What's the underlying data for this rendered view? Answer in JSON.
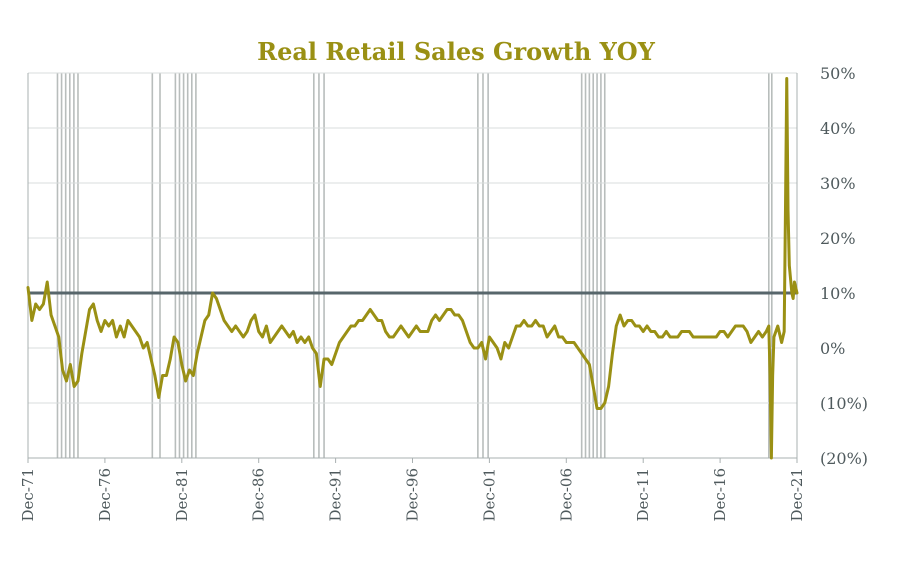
{
  "chart_data": {
    "type": "line",
    "title": "Real Retail Sales Growth YOY",
    "xlabel": "",
    "ylabel": "",
    "x_range": [
      "Dec-71",
      "Dec-21"
    ],
    "ylim": [
      -0.2,
      0.5
    ],
    "y_ticks": [
      {
        "value": 0.5,
        "label": "50%"
      },
      {
        "value": 0.4,
        "label": "40%"
      },
      {
        "value": 0.3,
        "label": "30%"
      },
      {
        "value": 0.2,
        "label": "20%"
      },
      {
        "value": 0.1,
        "label": "10%"
      },
      {
        "value": 0.0,
        "label": "0%"
      },
      {
        "value": -0.1,
        "label": "(10%)"
      },
      {
        "value": -0.2,
        "label": "(20%)"
      }
    ],
    "x_ticks": [
      {
        "value": "1971-12",
        "label": "Dec-71"
      },
      {
        "value": "1976-12",
        "label": "Dec-76"
      },
      {
        "value": "1981-12",
        "label": "Dec-81"
      },
      {
        "value": "1986-12",
        "label": "Dec-86"
      },
      {
        "value": "1991-12",
        "label": "Dec-91"
      },
      {
        "value": "1996-12",
        "label": "Dec-96"
      },
      {
        "value": "2001-12",
        "label": "Dec-01"
      },
      {
        "value": "2006-12",
        "label": "Dec-06"
      },
      {
        "value": "2011-12",
        "label": "Dec-11"
      },
      {
        "value": "2016-12",
        "label": "Dec-16"
      },
      {
        "value": "2021-12",
        "label": "Dec-21"
      }
    ],
    "grid": true,
    "reference_line": {
      "value": 0.1
    },
    "recessions": [
      {
        "start": "1973-11",
        "end": "1975-03"
      },
      {
        "start": "1980-01",
        "end": "1980-07"
      },
      {
        "start": "1981-07",
        "end": "1982-11"
      },
      {
        "start": "1990-07",
        "end": "1991-03"
      },
      {
        "start": "2001-03",
        "end": "2001-11"
      },
      {
        "start": "2007-12",
        "end": "2009-06"
      },
      {
        "start": "2020-02",
        "end": "2020-04"
      }
    ],
    "series": [
      {
        "color": "#9a9014",
        "points": [
          [
            "1971-12",
            0.11
          ],
          [
            "1972-03",
            0.05
          ],
          [
            "1972-06",
            0.08
          ],
          [
            "1972-09",
            0.07
          ],
          [
            "1972-12",
            0.08
          ],
          [
            "1973-03",
            0.12
          ],
          [
            "1973-06",
            0.06
          ],
          [
            "1973-09",
            0.04
          ],
          [
            "1973-12",
            0.02
          ],
          [
            "1974-03",
            -0.04
          ],
          [
            "1974-06",
            -0.06
          ],
          [
            "1974-09",
            -0.03
          ],
          [
            "1974-12",
            -0.07
          ],
          [
            "1975-03",
            -0.06
          ],
          [
            "1975-06",
            -0.01
          ],
          [
            "1975-09",
            0.03
          ],
          [
            "1975-12",
            0.07
          ],
          [
            "1976-03",
            0.08
          ],
          [
            "1976-06",
            0.05
          ],
          [
            "1976-09",
            0.03
          ],
          [
            "1976-12",
            0.05
          ],
          [
            "1977-03",
            0.04
          ],
          [
            "1977-06",
            0.05
          ],
          [
            "1977-09",
            0.02
          ],
          [
            "1977-12",
            0.04
          ],
          [
            "1978-03",
            0.02
          ],
          [
            "1978-06",
            0.05
          ],
          [
            "1978-09",
            0.04
          ],
          [
            "1978-12",
            0.03
          ],
          [
            "1979-03",
            0.02
          ],
          [
            "1979-06",
            0.0
          ],
          [
            "1979-09",
            0.01
          ],
          [
            "1979-12",
            -0.02
          ],
          [
            "1980-03",
            -0.05
          ],
          [
            "1980-06",
            -0.09
          ],
          [
            "1980-09",
            -0.05
          ],
          [
            "1980-12",
            -0.05
          ],
          [
            "1981-03",
            -0.02
          ],
          [
            "1981-06",
            0.02
          ],
          [
            "1981-09",
            0.01
          ],
          [
            "1981-12",
            -0.03
          ],
          [
            "1982-03",
            -0.06
          ],
          [
            "1982-06",
            -0.04
          ],
          [
            "1982-09",
            -0.05
          ],
          [
            "1982-12",
            -0.01
          ],
          [
            "1983-03",
            0.02
          ],
          [
            "1983-06",
            0.05
          ],
          [
            "1983-09",
            0.06
          ],
          [
            "1983-12",
            0.1
          ],
          [
            "1984-03",
            0.09
          ],
          [
            "1984-06",
            0.07
          ],
          [
            "1984-09",
            0.05
          ],
          [
            "1984-12",
            0.04
          ],
          [
            "1985-03",
            0.03
          ],
          [
            "1985-06",
            0.04
          ],
          [
            "1985-09",
            0.03
          ],
          [
            "1985-12",
            0.02
          ],
          [
            "1986-03",
            0.03
          ],
          [
            "1986-06",
            0.05
          ],
          [
            "1986-09",
            0.06
          ],
          [
            "1986-12",
            0.03
          ],
          [
            "1987-03",
            0.02
          ],
          [
            "1987-06",
            0.04
          ],
          [
            "1987-09",
            0.01
          ],
          [
            "1987-12",
            0.02
          ],
          [
            "1988-03",
            0.03
          ],
          [
            "1988-06",
            0.04
          ],
          [
            "1988-09",
            0.03
          ],
          [
            "1988-12",
            0.02
          ],
          [
            "1989-03",
            0.03
          ],
          [
            "1989-06",
            0.01
          ],
          [
            "1989-09",
            0.02
          ],
          [
            "1989-12",
            0.01
          ],
          [
            "1990-03",
            0.02
          ],
          [
            "1990-06",
            0.0
          ],
          [
            "1990-09",
            -0.01
          ],
          [
            "1990-12",
            -0.07
          ],
          [
            "1991-03",
            -0.02
          ],
          [
            "1991-06",
            -0.02
          ],
          [
            "1991-09",
            -0.03
          ],
          [
            "1991-12",
            -0.01
          ],
          [
            "1992-03",
            0.01
          ],
          [
            "1992-06",
            0.02
          ],
          [
            "1992-09",
            0.03
          ],
          [
            "1992-12",
            0.04
          ],
          [
            "1993-03",
            0.04
          ],
          [
            "1993-06",
            0.05
          ],
          [
            "1993-09",
            0.05
          ],
          [
            "1993-12",
            0.06
          ],
          [
            "1994-03",
            0.07
          ],
          [
            "1994-06",
            0.06
          ],
          [
            "1994-09",
            0.05
          ],
          [
            "1994-12",
            0.05
          ],
          [
            "1995-03",
            0.03
          ],
          [
            "1995-06",
            0.02
          ],
          [
            "1995-09",
            0.02
          ],
          [
            "1995-12",
            0.03
          ],
          [
            "1996-03",
            0.04
          ],
          [
            "1996-06",
            0.03
          ],
          [
            "1996-09",
            0.02
          ],
          [
            "1996-12",
            0.03
          ],
          [
            "1997-03",
            0.04
          ],
          [
            "1997-06",
            0.03
          ],
          [
            "1997-09",
            0.03
          ],
          [
            "1997-12",
            0.03
          ],
          [
            "1998-03",
            0.05
          ],
          [
            "1998-06",
            0.06
          ],
          [
            "1998-09",
            0.05
          ],
          [
            "1998-12",
            0.06
          ],
          [
            "1999-03",
            0.07
          ],
          [
            "1999-06",
            0.07
          ],
          [
            "1999-09",
            0.06
          ],
          [
            "1999-12",
            0.06
          ],
          [
            "2000-03",
            0.05
          ],
          [
            "2000-06",
            0.03
          ],
          [
            "2000-09",
            0.01
          ],
          [
            "2000-12",
            0.0
          ],
          [
            "2001-03",
            0.0
          ],
          [
            "2001-06",
            0.01
          ],
          [
            "2001-09",
            -0.02
          ],
          [
            "2001-12",
            0.02
          ],
          [
            "2002-03",
            0.01
          ],
          [
            "2002-06",
            0.0
          ],
          [
            "2002-09",
            -0.02
          ],
          [
            "2002-12",
            0.01
          ],
          [
            "2003-03",
            0.0
          ],
          [
            "2003-06",
            0.02
          ],
          [
            "2003-09",
            0.04
          ],
          [
            "2003-12",
            0.04
          ],
          [
            "2004-03",
            0.05
          ],
          [
            "2004-06",
            0.04
          ],
          [
            "2004-09",
            0.04
          ],
          [
            "2004-12",
            0.05
          ],
          [
            "2005-03",
            0.04
          ],
          [
            "2005-06",
            0.04
          ],
          [
            "2005-09",
            0.02
          ],
          [
            "2005-12",
            0.03
          ],
          [
            "2006-03",
            0.04
          ],
          [
            "2006-06",
            0.02
          ],
          [
            "2006-09",
            0.02
          ],
          [
            "2006-12",
            0.01
          ],
          [
            "2007-03",
            0.01
          ],
          [
            "2007-06",
            0.01
          ],
          [
            "2007-09",
            0.0
          ],
          [
            "2007-12",
            -0.01
          ],
          [
            "2008-03",
            -0.02
          ],
          [
            "2008-06",
            -0.03
          ],
          [
            "2008-09",
            -0.07
          ],
          [
            "2008-12",
            -0.11
          ],
          [
            "2009-03",
            -0.11
          ],
          [
            "2009-06",
            -0.1
          ],
          [
            "2009-09",
            -0.07
          ],
          [
            "2009-12",
            -0.01
          ],
          [
            "2010-03",
            0.04
          ],
          [
            "2010-06",
            0.06
          ],
          [
            "2010-09",
            0.04
          ],
          [
            "2010-12",
            0.05
          ],
          [
            "2011-03",
            0.05
          ],
          [
            "2011-06",
            0.04
          ],
          [
            "2011-09",
            0.04
          ],
          [
            "2011-12",
            0.03
          ],
          [
            "2012-03",
            0.04
          ],
          [
            "2012-06",
            0.03
          ],
          [
            "2012-09",
            0.03
          ],
          [
            "2012-12",
            0.02
          ],
          [
            "2013-03",
            0.02
          ],
          [
            "2013-06",
            0.03
          ],
          [
            "2013-09",
            0.02
          ],
          [
            "2013-12",
            0.02
          ],
          [
            "2014-03",
            0.02
          ],
          [
            "2014-06",
            0.03
          ],
          [
            "2014-09",
            0.03
          ],
          [
            "2014-12",
            0.03
          ],
          [
            "2015-03",
            0.02
          ],
          [
            "2015-06",
            0.02
          ],
          [
            "2015-09",
            0.02
          ],
          [
            "2015-12",
            0.02
          ],
          [
            "2016-03",
            0.02
          ],
          [
            "2016-06",
            0.02
          ],
          [
            "2016-09",
            0.02
          ],
          [
            "2016-12",
            0.03
          ],
          [
            "2017-03",
            0.03
          ],
          [
            "2017-06",
            0.02
          ],
          [
            "2017-09",
            0.03
          ],
          [
            "2017-12",
            0.04
          ],
          [
            "2018-03",
            0.04
          ],
          [
            "2018-06",
            0.04
          ],
          [
            "2018-09",
            0.03
          ],
          [
            "2018-12",
            0.01
          ],
          [
            "2019-03",
            0.02
          ],
          [
            "2019-06",
            0.03
          ],
          [
            "2019-09",
            0.02
          ],
          [
            "2019-12",
            0.03
          ],
          [
            "2020-02",
            0.04
          ],
          [
            "2020-03",
            -0.05
          ],
          [
            "2020-04",
            -0.2
          ],
          [
            "2020-05",
            -0.05
          ],
          [
            "2020-06",
            0.02
          ],
          [
            "2020-09",
            0.04
          ],
          [
            "2020-12",
            0.01
          ],
          [
            "2021-02",
            0.03
          ],
          [
            "2021-03",
            0.25
          ],
          [
            "2021-04",
            0.49
          ],
          [
            "2021-05",
            0.25
          ],
          [
            "2021-06",
            0.15
          ],
          [
            "2021-08",
            0.1
          ],
          [
            "2021-09",
            0.09
          ],
          [
            "2021-10",
            0.12
          ],
          [
            "2021-12",
            0.1
          ]
        ]
      }
    ]
  },
  "colors": {
    "line": "#9a9014",
    "title": "#9a9014",
    "reference": "#57666b",
    "recession": "#b8bdbc",
    "grid": "#d8dcdc",
    "axis_text": "#4f5a5d"
  }
}
